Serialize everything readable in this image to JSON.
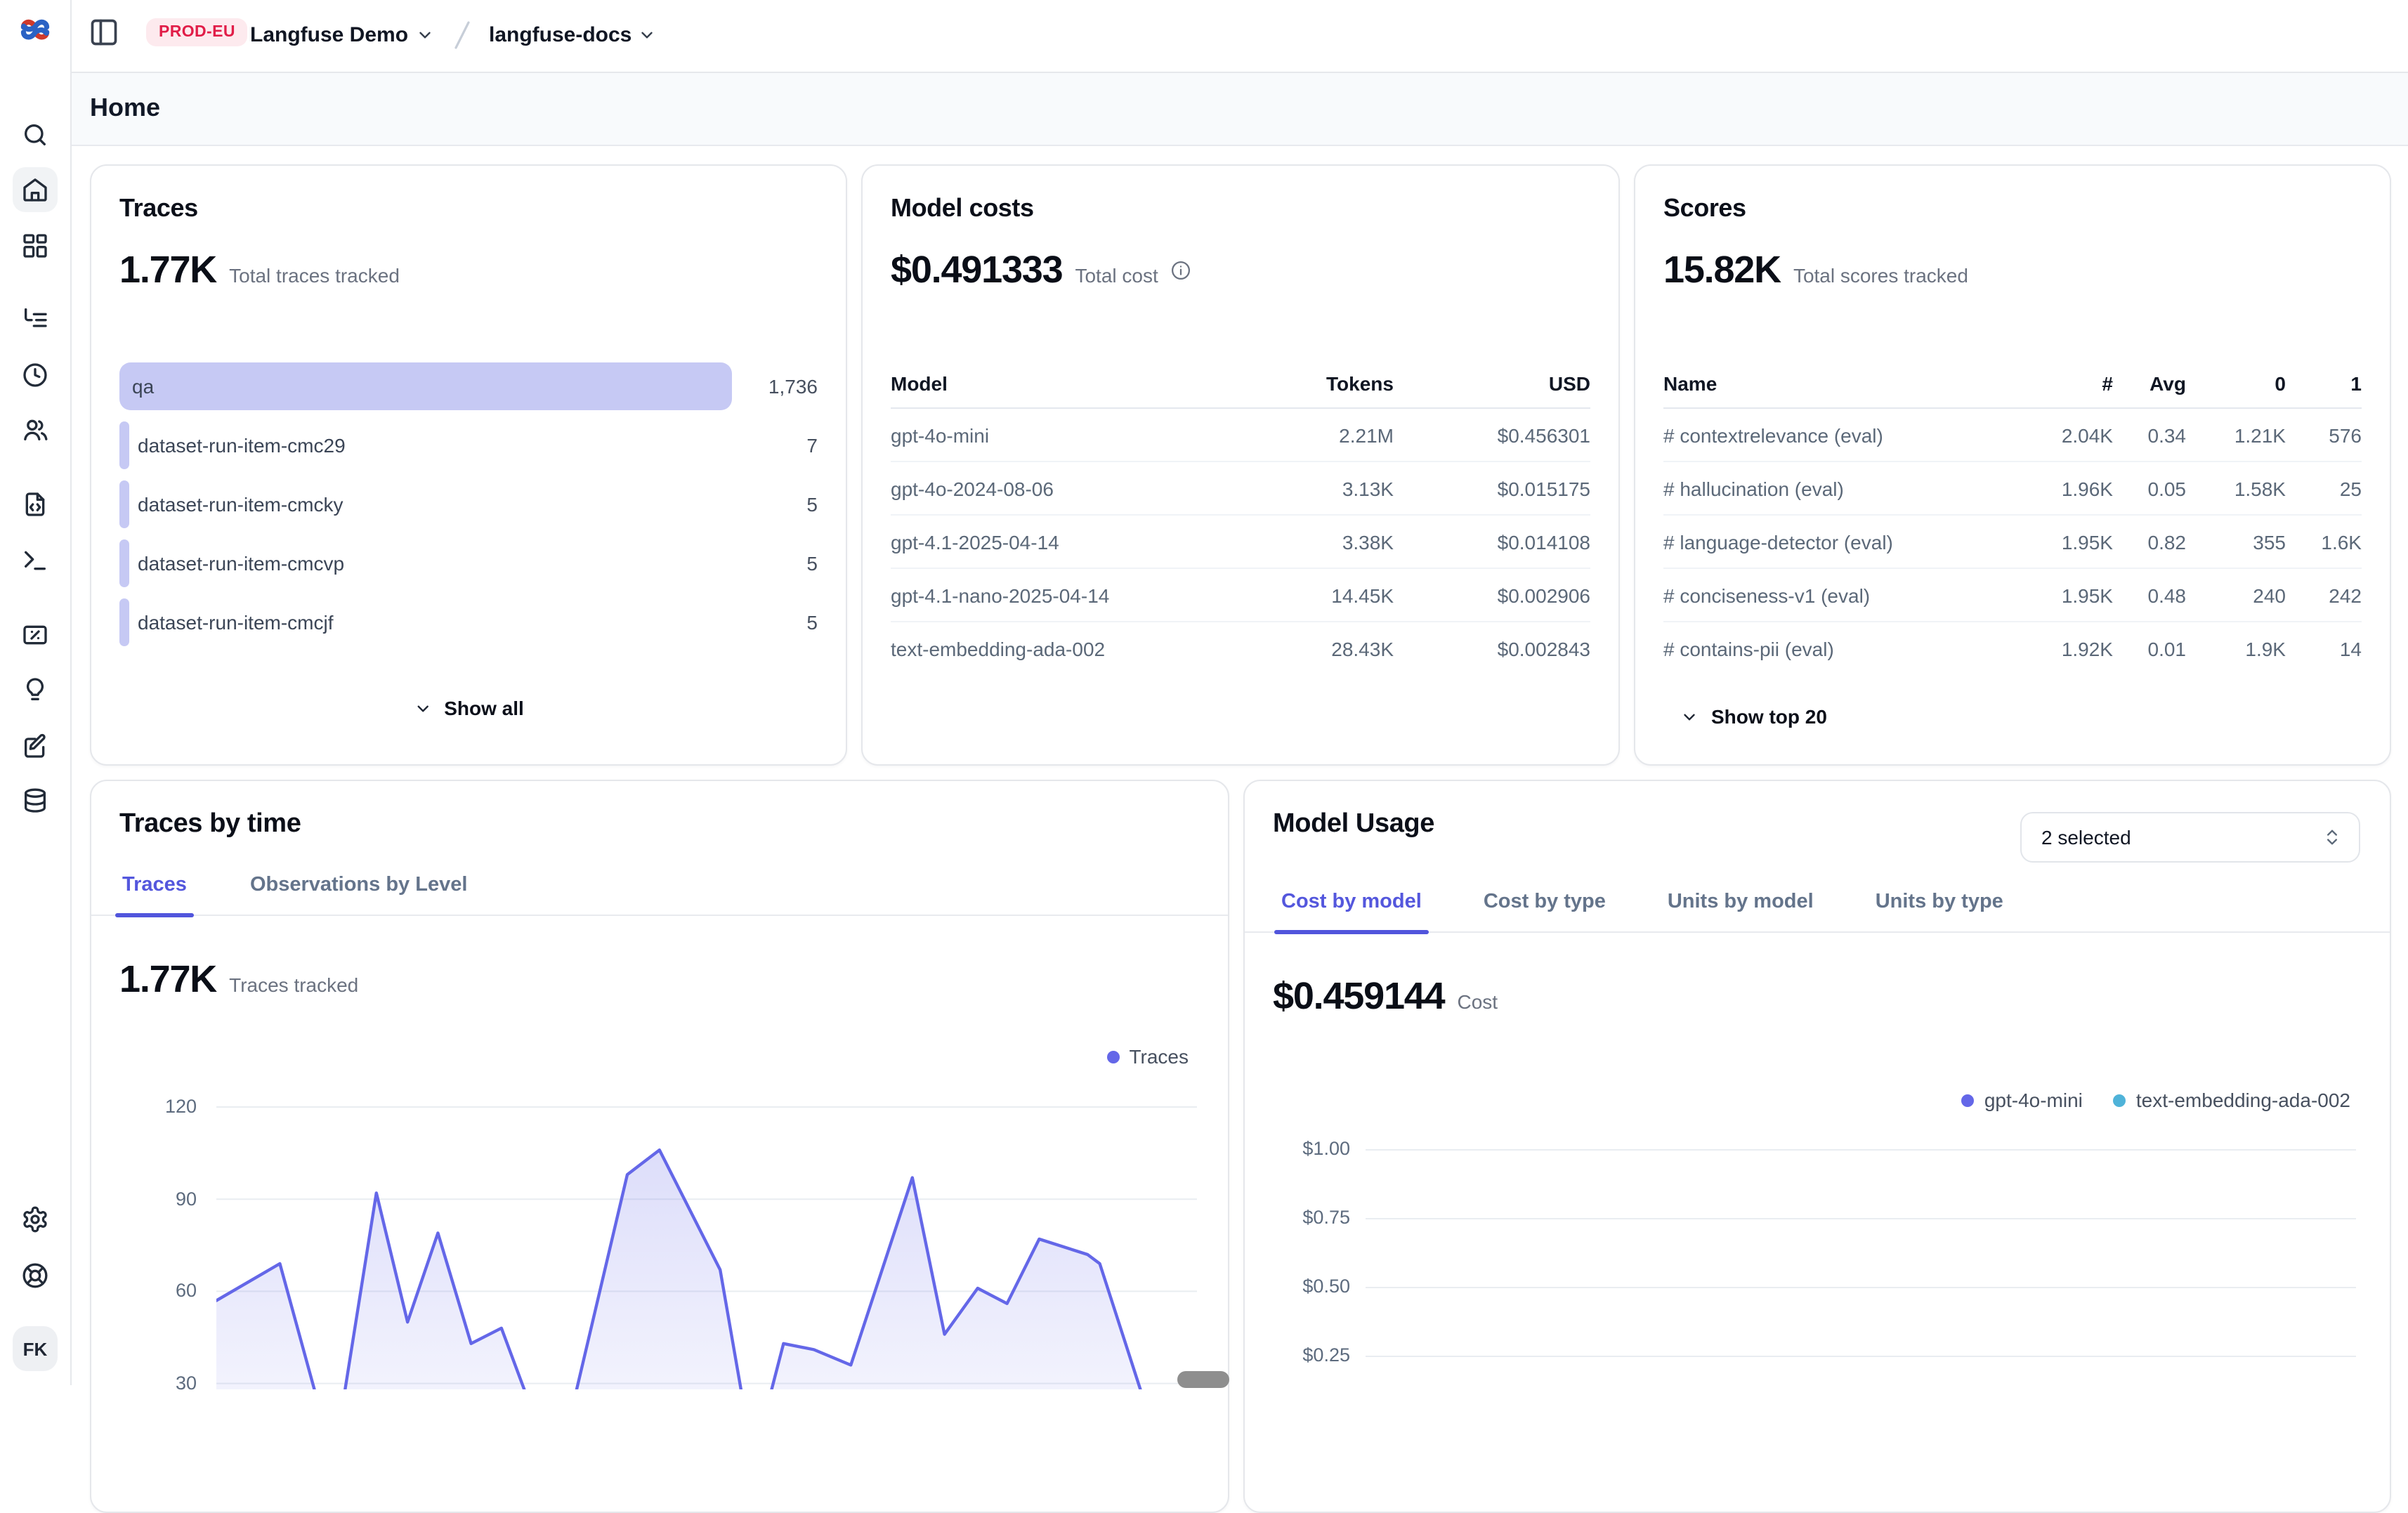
{
  "header": {
    "env_badge": "PROD-EU",
    "org": "Langfuse Demo",
    "project": "langfuse-docs"
  },
  "page": {
    "title": "Home"
  },
  "sidebar": {
    "icons": [
      "search",
      "home",
      "dashboards",
      "tracing",
      "sessions",
      "users",
      "prompts",
      "playground",
      "evals",
      "judge",
      "annotation",
      "datasets",
      "settings",
      "support"
    ],
    "active_icon": "home",
    "avatar": "FK"
  },
  "traces_card": {
    "title": "Traces",
    "metric": "1.77K",
    "metric_label": "Total traces tracked",
    "rows": [
      {
        "label": "qa",
        "count": "1,736",
        "value": 1736
      },
      {
        "label": "dataset-run-item-cmc29",
        "count": "7",
        "value": 7
      },
      {
        "label": "dataset-run-item-cmcky",
        "count": "5",
        "value": 5
      },
      {
        "label": "dataset-run-item-cmcvp",
        "count": "5",
        "value": 5
      },
      {
        "label": "dataset-run-item-cmcjf",
        "count": "5",
        "value": 5
      }
    ],
    "show_all": "Show all"
  },
  "model_costs_card": {
    "title": "Model costs",
    "metric": "$0.491333",
    "metric_label": "Total cost",
    "columns": [
      "Model",
      "Tokens",
      "USD"
    ],
    "rows": [
      {
        "model": "gpt-4o-mini",
        "tokens": "2.21M",
        "usd": "$0.456301"
      },
      {
        "model": "gpt-4o-2024-08-06",
        "tokens": "3.13K",
        "usd": "$0.015175"
      },
      {
        "model": "gpt-4.1-2025-04-14",
        "tokens": "3.38K",
        "usd": "$0.014108"
      },
      {
        "model": "gpt-4.1-nano-2025-04-14",
        "tokens": "14.45K",
        "usd": "$0.002906"
      },
      {
        "model": "text-embedding-ada-002",
        "tokens": "28.43K",
        "usd": "$0.002843"
      }
    ]
  },
  "scores_card": {
    "title": "Scores",
    "metric": "15.82K",
    "metric_label": "Total scores tracked",
    "columns": [
      "Name",
      "#",
      "Avg",
      "0",
      "1"
    ],
    "rows": [
      {
        "name": "# contextrelevance (eval)",
        "count": "2.04K",
        "avg": "0.34",
        "zero": "1.21K",
        "one": "576"
      },
      {
        "name": "# hallucination (eval)",
        "count": "1.96K",
        "avg": "0.05",
        "zero": "1.58K",
        "one": "25"
      },
      {
        "name": "# language-detector (eval)",
        "count": "1.95K",
        "avg": "0.82",
        "zero": "355",
        "one": "1.6K"
      },
      {
        "name": "# conciseness-v1 (eval)",
        "count": "1.95K",
        "avg": "0.48",
        "zero": "240",
        "one": "242"
      },
      {
        "name": "# contains-pii (eval)",
        "count": "1.92K",
        "avg": "0.01",
        "zero": "1.9K",
        "one": "14"
      }
    ],
    "show_top": "Show top 20"
  },
  "traces_by_time": {
    "title": "Traces by time",
    "tabs": [
      "Traces",
      "Observations by Level"
    ],
    "active_tab": 0,
    "metric": "1.77K",
    "metric_label": "Traces tracked",
    "legend": [
      {
        "label": "Traces",
        "color": "#6467e8"
      }
    ]
  },
  "model_usage": {
    "title": "Model Usage",
    "selector": "2 selected",
    "tabs": [
      "Cost by model",
      "Cost by type",
      "Units by model",
      "Units by type"
    ],
    "active_tab": 0,
    "metric": "$0.459144",
    "metric_label": "Cost",
    "legend": [
      {
        "label": "gpt-4o-mini",
        "color": "#6467e8"
      },
      {
        "label": "text-embedding-ada-002",
        "color": "#4fb3d9"
      }
    ]
  },
  "chart_data": [
    {
      "id": "traces_by_time",
      "type": "area",
      "title": "Traces by time — Traces",
      "series": [
        {
          "name": "Traces",
          "color": "#6467e8"
        }
      ],
      "ylabel": "Traces tracked",
      "y_ticks": [
        120,
        90,
        60,
        30
      ],
      "grid": true,
      "points": [
        [
          0.0,
          57
        ],
        [
          0.067,
          69
        ],
        [
          0.124,
          5
        ],
        [
          0.169,
          92
        ],
        [
          0.202,
          50
        ],
        [
          0.234,
          79
        ],
        [
          0.269,
          43
        ],
        [
          0.301,
          48
        ],
        [
          0.359,
          0
        ],
        [
          0.434,
          98
        ],
        [
          0.468,
          106
        ],
        [
          0.532,
          67
        ],
        [
          0.567,
          5
        ],
        [
          0.599,
          43
        ],
        [
          0.631,
          41
        ],
        [
          0.67,
          36
        ],
        [
          0.735,
          97
        ],
        [
          0.769,
          46
        ],
        [
          0.804,
          61
        ],
        [
          0.835,
          56
        ],
        [
          0.869,
          77
        ],
        [
          0.92,
          72
        ],
        [
          0.933,
          69
        ],
        [
          1.0,
          5
        ]
      ]
    },
    {
      "id": "model_usage_cost",
      "type": "bar",
      "title": "Model Usage — Cost by model",
      "series": [
        {
          "name": "gpt-4o-mini",
          "color": "#6467e8"
        },
        {
          "name": "text-embedding-ada-002",
          "color": "#4fb3d9"
        }
      ],
      "ylabel": "Cost",
      "y_ticks": [
        "$1.00",
        "$0.75",
        "$0.50",
        "$0.25"
      ],
      "grid": true
    }
  ]
}
